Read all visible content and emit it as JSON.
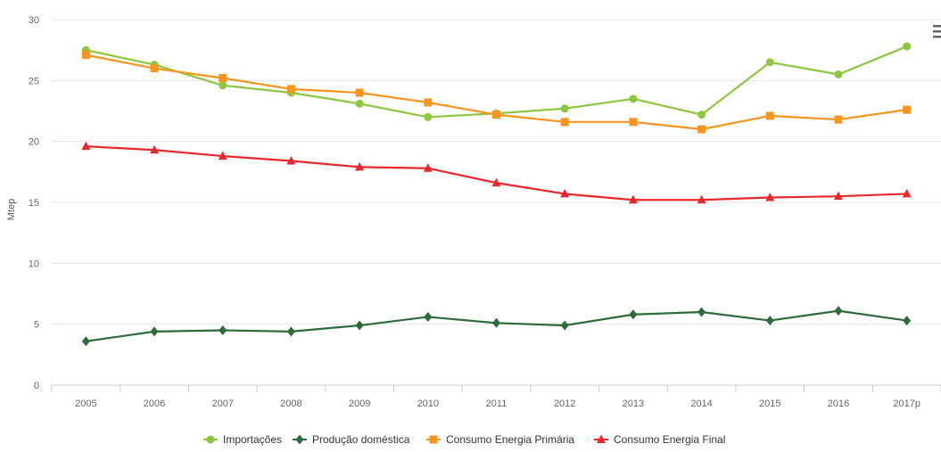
{
  "chart_data": {
    "type": "line",
    "title": "",
    "xlabel": "",
    "ylabel": "Mtep",
    "ylim": [
      0,
      30
    ],
    "yticks": [
      0,
      5,
      10,
      15,
      20,
      25,
      30
    ],
    "grid": true,
    "legend_position": "bottom-center",
    "categories": [
      "2005",
      "2006",
      "2007",
      "2008",
      "2009",
      "2010",
      "2011",
      "2012",
      "2013",
      "2014",
      "2015",
      "2016",
      "2017p"
    ],
    "series": [
      {
        "name": "Importações",
        "color": "#8dc63f",
        "marker": "circle",
        "values": [
          27.5,
          26.3,
          24.6,
          24.0,
          23.1,
          22.0,
          22.3,
          22.7,
          23.5,
          22.2,
          26.5,
          25.5,
          27.8
        ]
      },
      {
        "name": "Produção doméstica",
        "color": "#2e6b3a",
        "marker": "diamond",
        "values": [
          3.6,
          4.4,
          4.5,
          4.4,
          4.9,
          5.6,
          5.1,
          4.9,
          5.8,
          6.0,
          5.3,
          6.1,
          5.3
        ]
      },
      {
        "name": "Consumo Energia Primária",
        "color": "#f7941d",
        "marker": "square",
        "values": [
          27.1,
          26.0,
          25.2,
          24.3,
          24.0,
          23.2,
          22.2,
          21.6,
          21.6,
          21.0,
          22.1,
          21.8,
          22.6
        ]
      },
      {
        "name": "Consumo Energia Final",
        "color": "#e8282b",
        "marker": "triangle",
        "values": [
          19.6,
          19.3,
          18.8,
          18.4,
          17.9,
          17.8,
          16.6,
          15.7,
          15.2,
          15.2,
          15.4,
          15.5,
          15.7
        ]
      }
    ]
  },
  "menu": {
    "icon": "hamburger-menu-icon"
  }
}
